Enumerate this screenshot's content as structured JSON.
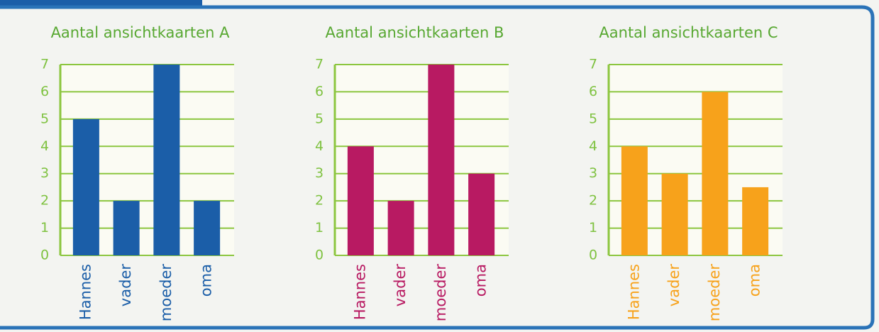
{
  "chart_data": [
    {
      "type": "bar",
      "title": "Aantal ansichtkaarten A",
      "categories": [
        "Hannes",
        "vader",
        "moeder",
        "oma"
      ],
      "values": [
        5,
        2,
        7,
        2
      ],
      "color": "#1b5ea8",
      "ylim": [
        0,
        7
      ],
      "yticks": [
        0,
        1,
        2,
        3,
        4,
        5,
        6,
        7
      ],
      "grid": true
    },
    {
      "type": "bar",
      "title": "Aantal ansichtkaarten B",
      "categories": [
        "Hannes",
        "vader",
        "moeder",
        "oma"
      ],
      "values": [
        4,
        2,
        7,
        3
      ],
      "color": "#b81a62",
      "ylim": [
        0,
        7
      ],
      "yticks": [
        0,
        1,
        2,
        3,
        4,
        5,
        6,
        7
      ],
      "grid": true
    },
    {
      "type": "bar",
      "title": "Aantal ansichtkaarten C",
      "categories": [
        "Hannes",
        "vader",
        "moeder",
        "oma"
      ],
      "values": [
        4,
        3,
        6,
        2.5
      ],
      "color": "#f7a21b",
      "ylim": [
        0,
        7
      ],
      "yticks": [
        0,
        1,
        2,
        3,
        4,
        5,
        6,
        7
      ],
      "grid": true
    }
  ]
}
